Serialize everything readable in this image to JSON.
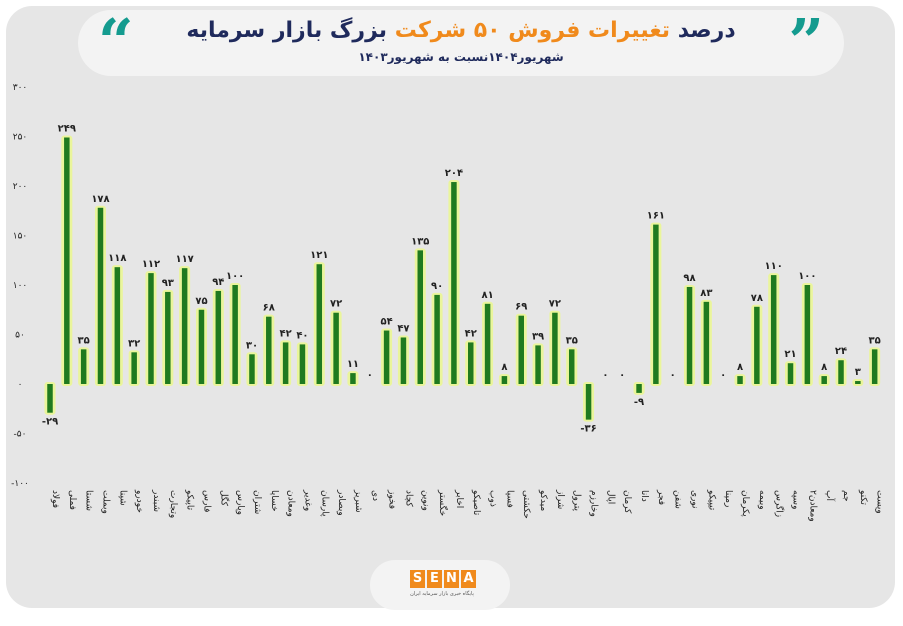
{
  "header": {
    "title_dark": "درصد",
    "title_highlight": "تغییرات فروش ۵۰ شرکت",
    "title_rest": "بزرگ بازار سرمایه",
    "subtitle": "شهریور۱۴۰۴نسبت به شهریور۱۴۰۳",
    "quote_open": "“",
    "quote_close": "”"
  },
  "logo": {
    "letters": [
      "S",
      "E",
      "N",
      "A"
    ],
    "tagline": "پایگاه خبری بازار سرمایه ایران"
  },
  "colors": {
    "bar": "#1f7a1f",
    "bar_glow": "#eaf59b",
    "title_dark": "#1f2a5c",
    "title_highlight": "#f08a1c",
    "quote": "#149b8f"
  },
  "chart_data": {
    "type": "bar",
    "yticks": [
      "۳۰۰",
      "۲۵۰",
      "۲۰۰",
      "۱۵۰",
      "۱۰۰",
      "۵۰",
      "۰",
      "-۵۰",
      "-۱۰۰"
    ],
    "ytick_values": [
      300,
      250,
      200,
      150,
      100,
      50,
      0,
      -50,
      -100
    ],
    "ylim": [
      -100,
      300
    ],
    "grid": false,
    "values": [
      -29,
      249,
      35,
      178,
      118,
      32,
      112,
      93,
      117,
      75,
      94,
      100,
      30,
      68,
      42,
      40,
      121,
      72,
      11,
      0,
      54,
      47,
      135,
      90,
      204,
      42,
      81,
      8,
      69,
      39,
      72,
      35,
      -36,
      0,
      0,
      -9,
      161,
      0,
      98,
      83,
      0,
      8,
      78,
      110,
      21,
      100,
      8,
      24,
      3,
      35
    ],
    "value_labels": [
      "-۲۹",
      "۲۴۹",
      "۳۵",
      "۱۷۸",
      "۱۱۸",
      "۳۲",
      "۱۱۲",
      "۹۳",
      "۱۱۷",
      "۷۵",
      "۹۴",
      "۱۰۰",
      "۳۰",
      "۶۸",
      "۴۲",
      "۴۰",
      "۱۲۱",
      "۷۲",
      "۱۱",
      "۰",
      "۵۴",
      "۴۷",
      "۱۳۵",
      "۹۰",
      "۲۰۴",
      "۴۲",
      "۸۱",
      "۸",
      "۶۹",
      "۳۹",
      "۷۲",
      "۳۵",
      "-۳۶",
      "۰",
      "۰",
      "-۹",
      "۱۶۱",
      "۰",
      "۹۸",
      "۸۳",
      "۰",
      "۸",
      "۷۸",
      "۱۱۰",
      "۲۱",
      "۱۰۰",
      "۸",
      "۲۴",
      "۳",
      "۳۵"
    ],
    "categories": [
      "فولاد",
      "فملی",
      "شستا",
      "وبملت",
      "شپنا",
      "خودرو",
      "شبندر",
      "وتجارت",
      "تاپیکو",
      "فارس",
      "کگل",
      "وپارس",
      "شتران",
      "خساپا",
      "ومعادن",
      "وغدیر",
      "پارسان",
      "وبصادر",
      "شبریز",
      "دی",
      "فخوز",
      "کچاد",
      "ونوین",
      "خگستر",
      "اخابر",
      "تاصیکو",
      "ذوب",
      "فسپا",
      "حکشتی",
      "میدکو",
      "شراز",
      "پترول",
      "وخارزم",
      "اپال",
      "کرمان",
      "دانا",
      "فجر",
      "شفن",
      "نوری",
      "تیپیکو",
      "رمپنا",
      "پکرمان",
      "وبیمه",
      "زاگرس",
      "وسپه",
      "ومعادن۲",
      "آپ",
      "جم",
      "تکنو",
      "وپست"
    ]
  }
}
